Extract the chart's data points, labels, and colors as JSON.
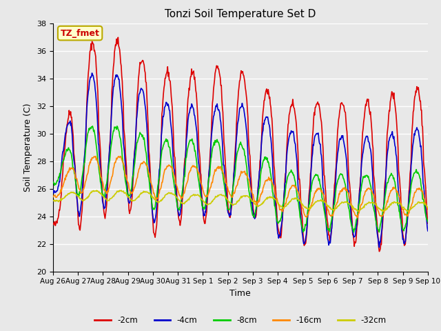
{
  "title": "Tonzi Soil Temperature Set D",
  "xlabel": "Time",
  "ylabel": "Soil Temperature (C)",
  "ylim": [
    20,
    38
  ],
  "yticks": [
    20,
    22,
    24,
    26,
    28,
    30,
    32,
    34,
    36,
    38
  ],
  "annotation_text": "TZ_fmet",
  "annotation_color": "#cc0000",
  "annotation_bg": "#ffffcc",
  "annotation_border": "#bbaa00",
  "legend_labels": [
    "-2cm",
    "-4cm",
    "-8cm",
    "-16cm",
    "-32cm"
  ],
  "line_colors": [
    "#dd0000",
    "#0000cc",
    "#00cc00",
    "#ff8800",
    "#cccc00"
  ],
  "line_widths": [
    1.2,
    1.2,
    1.2,
    1.2,
    1.2
  ],
  "background_color": "#e8e8e8",
  "plot_bg_color": "#e8e8e8",
  "grid_color": "#ffffff",
  "n_days": 15,
  "xtick_labels": [
    "Aug 26",
    "Aug 27",
    "Aug 28",
    "Aug 29",
    "Aug 30",
    "Aug 31",
    "Sep 1",
    "Sep 2",
    "Sep 3",
    "Sep 4",
    "Sep 5",
    "Sep 6",
    "Sep 7",
    "Sep 8",
    "Sep 9",
    "Sep 10"
  ],
  "samples_per_day": 48
}
